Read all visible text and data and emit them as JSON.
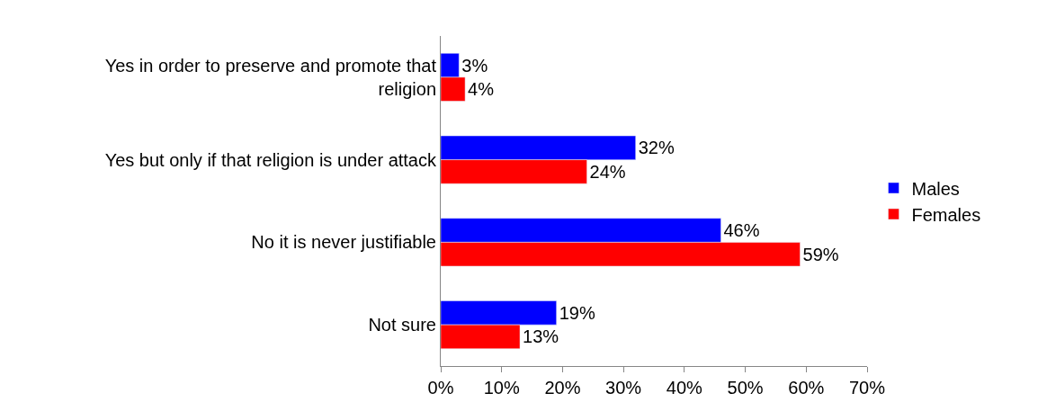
{
  "chart_data": {
    "type": "bar",
    "orientation": "horizontal",
    "categories": [
      "Yes in order to preserve and promote that religion",
      "Yes but only if that religion is under attack",
      "No it is never justifiable",
      "Not sure"
    ],
    "series": [
      {
        "name": "Males",
        "color": "#0000ff",
        "values": [
          3,
          32,
          46,
          19
        ],
        "value_labels": [
          "3%",
          "32%",
          "46%",
          "19%"
        ]
      },
      {
        "name": "Females",
        "color": "#ff0000",
        "values": [
          4,
          24,
          59,
          13
        ],
        "value_labels": [
          "4%",
          "24%",
          "59%",
          "13%"
        ]
      }
    ],
    "xlim": [
      0,
      70
    ],
    "xticks": [
      {
        "value": 0,
        "label": "0%"
      },
      {
        "value": 10,
        "label": "10%"
      },
      {
        "value": 20,
        "label": "20%"
      },
      {
        "value": 30,
        "label": "30%"
      },
      {
        "value": 40,
        "label": "40%"
      },
      {
        "value": 50,
        "label": "50%"
      },
      {
        "value": 60,
        "label": "60%"
      },
      {
        "value": 70,
        "label": "70%"
      }
    ],
    "legend": "right"
  }
}
